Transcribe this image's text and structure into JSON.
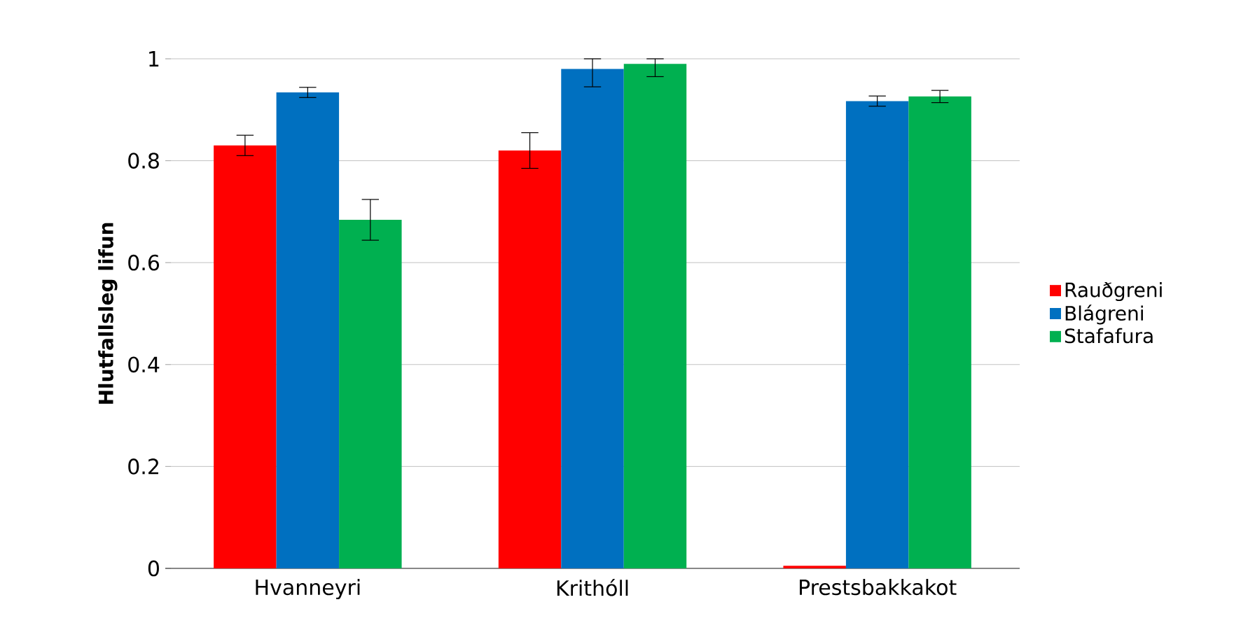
{
  "chart_data": {
    "type": "bar",
    "ylabel": "Hlutfallsleg lifun",
    "categories": [
      "Hvanneyri",
      "Krithóll",
      "Prestsbakkakot"
    ],
    "series": [
      {
        "name": "Rauðgreni",
        "color": "#ff0000",
        "values": [
          0.83,
          0.82,
          0.005
        ],
        "errors": [
          0.02,
          0.035,
          null
        ]
      },
      {
        "name": "Blágreni",
        "color": "#0070c0",
        "values": [
          0.934,
          0.98,
          0.917
        ],
        "errors": [
          0.01,
          [
            0.945,
            1.0
          ],
          0.01
        ]
      },
      {
        "name": "Stafafura",
        "color": "#00b050",
        "values": [
          0.684,
          0.99,
          0.926
        ],
        "errors": [
          0.04,
          [
            0.965,
            1.0
          ],
          0.012
        ]
      }
    ],
    "ylim": [
      0,
      1
    ],
    "yticks": [
      0,
      0.2,
      0.4,
      0.6,
      0.8,
      1
    ],
    "grid": "y",
    "legend": "right"
  }
}
